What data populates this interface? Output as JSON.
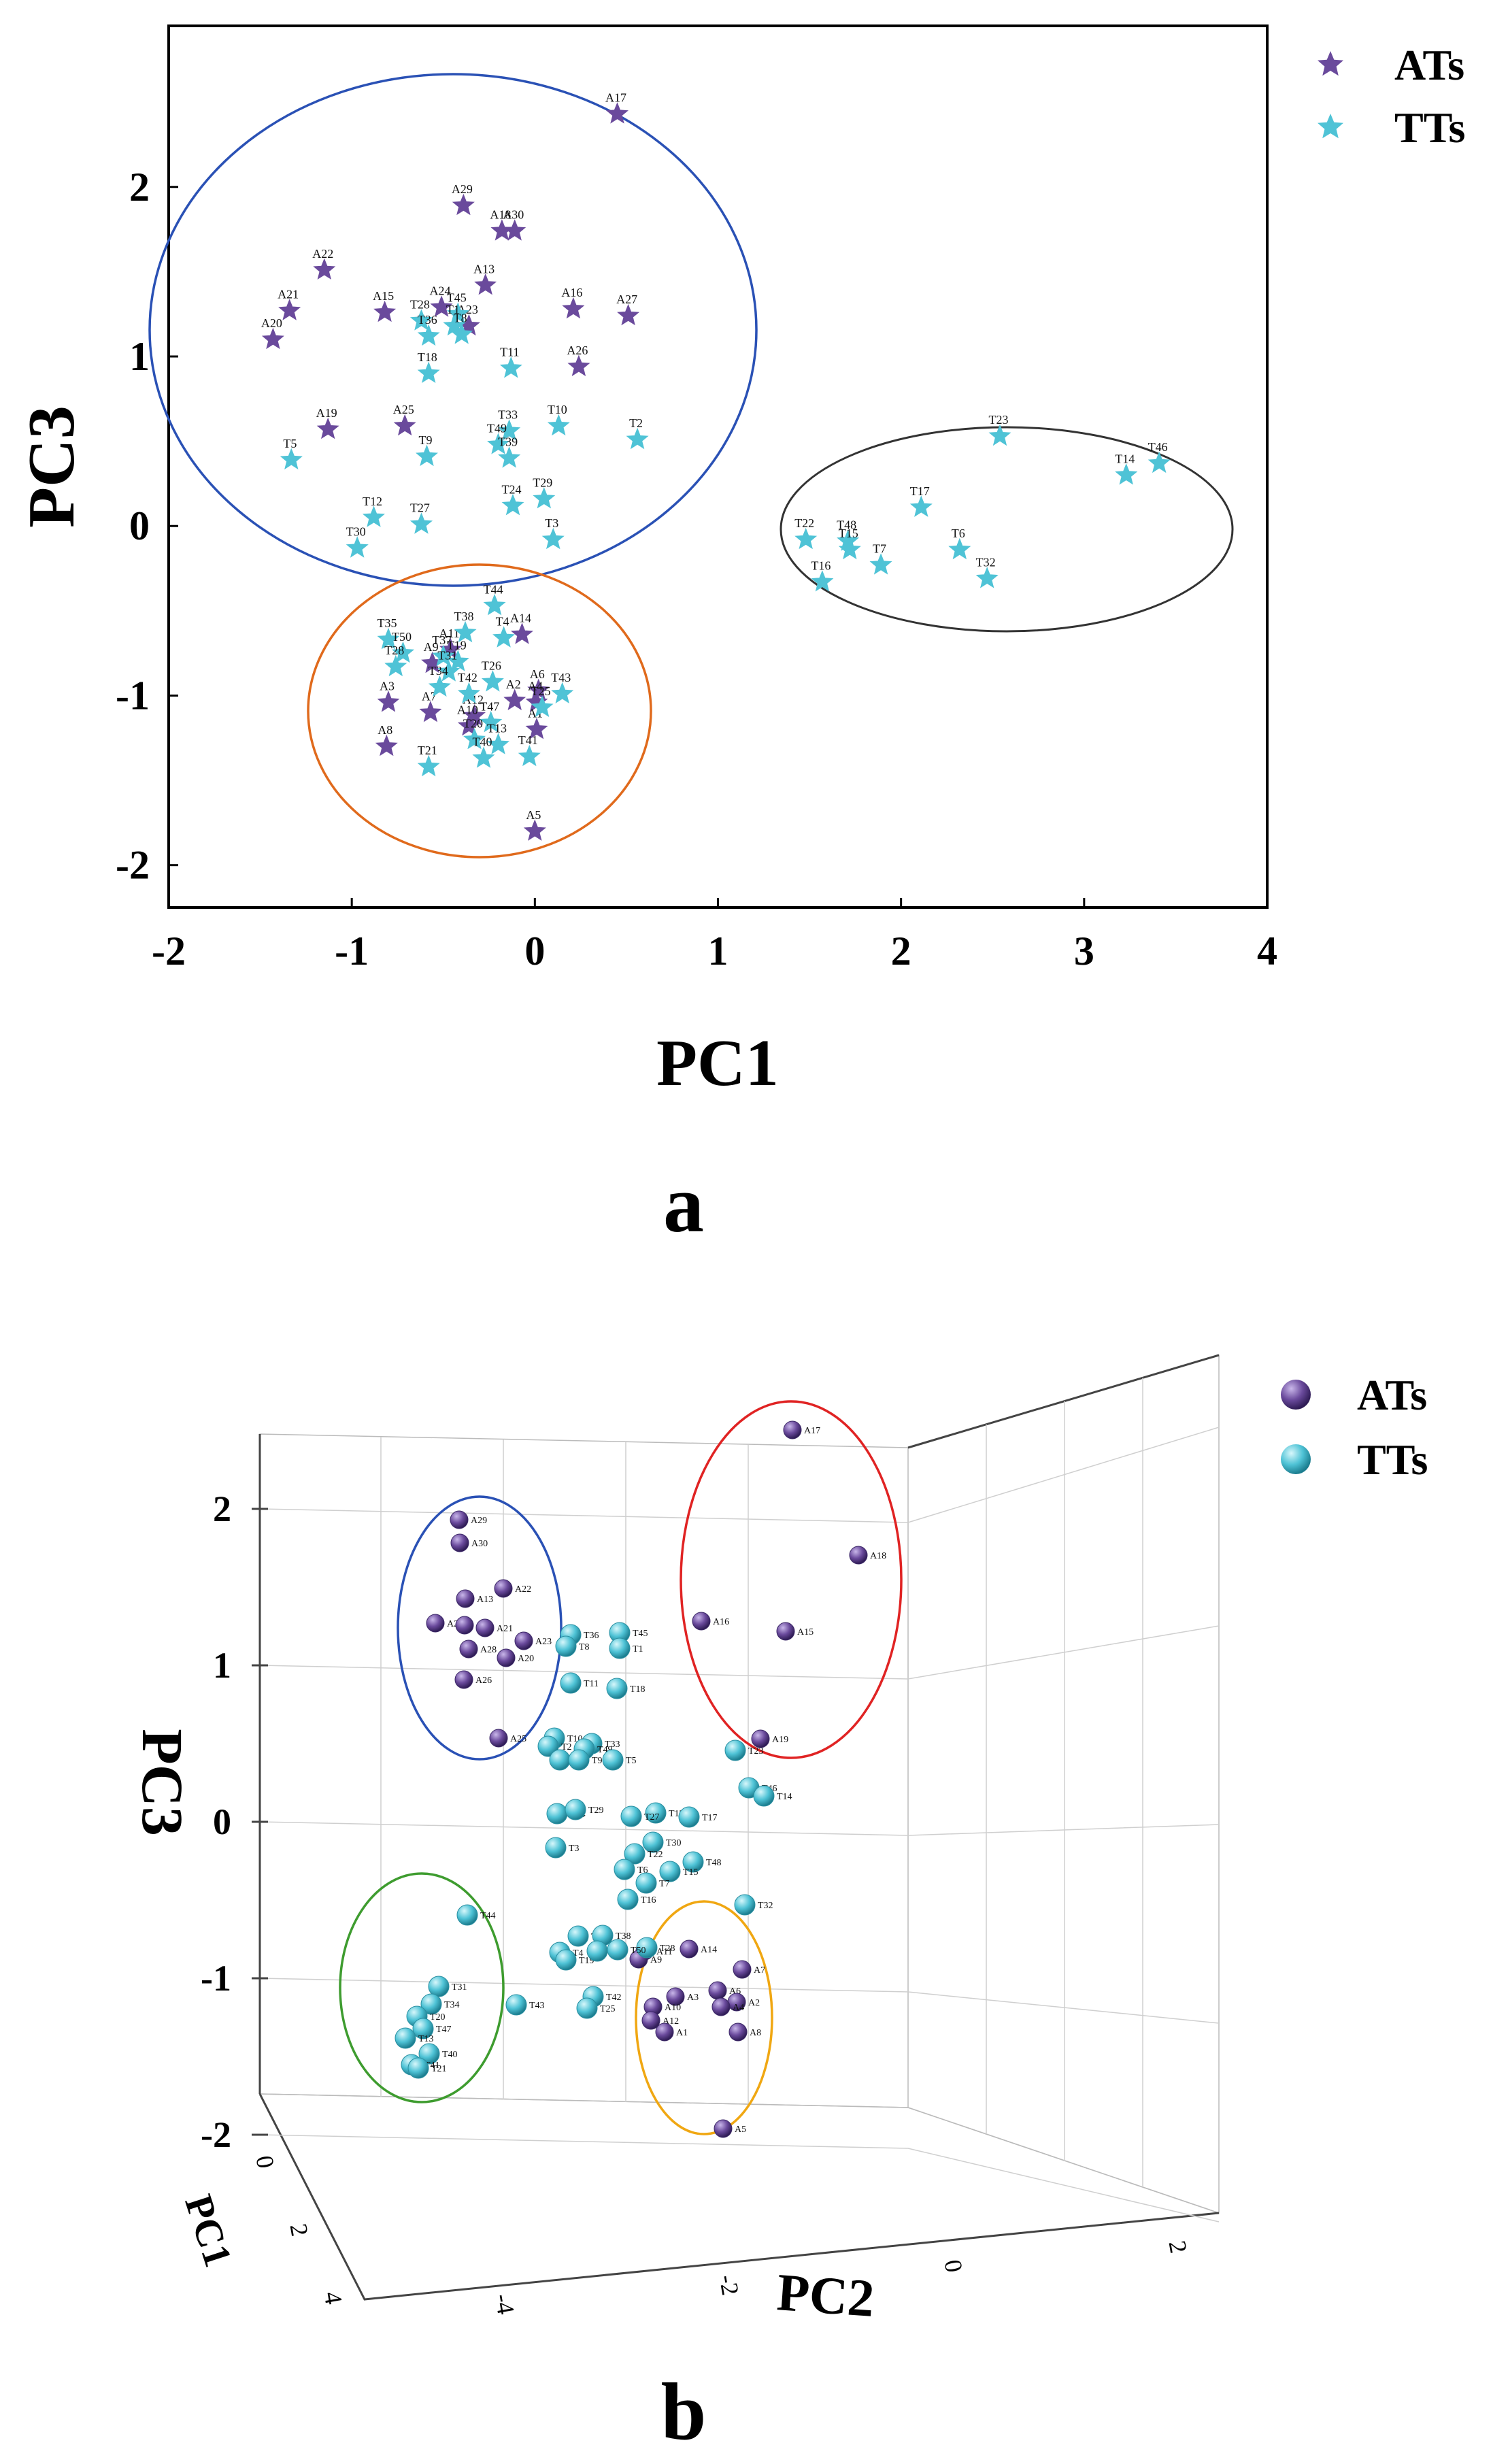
{
  "chart_data": [
    {
      "panel_label": "a",
      "type": "scatter",
      "xlabel": "PC1",
      "ylabel": "PC3",
      "xlim": [
        -2,
        4
      ],
      "ylim": [
        -2.25,
        2.95
      ],
      "xticks": [
        -2,
        -1,
        0,
        1,
        2,
        3,
        4
      ],
      "yticks": [
        -2,
        -1,
        0,
        1,
        2
      ],
      "grid": false,
      "legend_position": "top-right-outside",
      "colors": {
        "ATs": "#6a4a9c",
        "TTs": "#4fc3d6"
      },
      "series": [
        {
          "name": "ATs",
          "marker": "star",
          "points": [
            {
              "label": "A17",
              "x": 0.45,
              "y": 2.43
            },
            {
              "label": "A29",
              "x": -0.39,
              "y": 1.89
            },
            {
              "label": "A18",
              "x": -0.18,
              "y": 1.74
            },
            {
              "label": "A30",
              "x": -0.11,
              "y": 1.74
            },
            {
              "label": "A22",
              "x": -1.15,
              "y": 1.51
            },
            {
              "label": "A13",
              "x": -0.27,
              "y": 1.42
            },
            {
              "label": "A21",
              "x": -1.34,
              "y": 1.27
            },
            {
              "label": "A15",
              "x": -0.82,
              "y": 1.26
            },
            {
              "label": "A24",
              "x": -0.51,
              "y": 1.29
            },
            {
              "label": "A16",
              "x": 0.21,
              "y": 1.28
            },
            {
              "label": "A27",
              "x": 0.51,
              "y": 1.24
            },
            {
              "label": "A23",
              "x": -0.36,
              "y": 1.18
            },
            {
              "label": "A20",
              "x": -1.43,
              "y": 1.1
            },
            {
              "label": "A26",
              "x": 0.24,
              "y": 0.94
            },
            {
              "label": "A19",
              "x": -1.13,
              "y": 0.57
            },
            {
              "label": "A25",
              "x": -0.71,
              "y": 0.59
            },
            {
              "label": "A14",
              "x": -0.07,
              "y": -0.64
            },
            {
              "label": "A11",
              "x": -0.46,
              "y": -0.73
            },
            {
              "label": "A9",
              "x": -0.56,
              "y": -0.81
            },
            {
              "label": "A6",
              "x": 0.02,
              "y": -0.97
            },
            {
              "label": "A2",
              "x": -0.11,
              "y": -1.03
            },
            {
              "label": "A3",
              "x": -0.8,
              "y": -1.04
            },
            {
              "label": "A4",
              "x": 0.01,
              "y": -1.04
            },
            {
              "label": "A7",
              "x": -0.57,
              "y": -1.1
            },
            {
              "label": "A12",
              "x": -0.33,
              "y": -1.12
            },
            {
              "label": "A10",
              "x": -0.36,
              "y": -1.18
            },
            {
              "label": "A1",
              "x": 0.01,
              "y": -1.2
            },
            {
              "label": "A8",
              "x": -0.81,
              "y": -1.3
            },
            {
              "label": "A5",
              "x": 0.0,
              "y": -1.8
            }
          ]
        },
        {
          "name": "TTs",
          "marker": "star",
          "points": [
            {
              "label": "T45",
              "x": -0.42,
              "y": 1.25
            },
            {
              "label": "T28",
              "x": -0.62,
              "y": 1.21
            },
            {
              "label": "T1",
              "x": -0.44,
              "y": 1.18
            },
            {
              "label": "T36",
              "x": -0.58,
              "y": 1.12
            },
            {
              "label": "T8",
              "x": -0.4,
              "y": 1.13
            },
            {
              "label": "T11",
              "x": -0.13,
              "y": 0.93
            },
            {
              "label": "T18",
              "x": -0.58,
              "y": 0.9
            },
            {
              "label": "T33",
              "x": -0.14,
              "y": 0.56
            },
            {
              "label": "T10",
              "x": 0.13,
              "y": 0.59
            },
            {
              "label": "T2",
              "x": 0.56,
              "y": 0.51
            },
            {
              "label": "T49",
              "x": -0.2,
              "y": 0.48
            },
            {
              "label": "T5",
              "x": -1.33,
              "y": 0.39
            },
            {
              "label": "T9",
              "x": -0.59,
              "y": 0.41
            },
            {
              "label": "T39",
              "x": -0.14,
              "y": 0.4
            },
            {
              "label": "T29",
              "x": 0.05,
              "y": 0.16
            },
            {
              "label": "T24",
              "x": -0.12,
              "y": 0.12
            },
            {
              "label": "T12",
              "x": -0.88,
              "y": 0.05
            },
            {
              "label": "T27",
              "x": -0.62,
              "y": 0.01
            },
            {
              "label": "T3",
              "x": 0.1,
              "y": -0.08
            },
            {
              "label": "T30",
              "x": -0.97,
              "y": -0.13
            },
            {
              "label": "T23",
              "x": 2.54,
              "y": 0.53
            },
            {
              "label": "T46",
              "x": 3.41,
              "y": 0.37
            },
            {
              "label": "T14",
              "x": 3.23,
              "y": 0.3
            },
            {
              "label": "T17",
              "x": 2.11,
              "y": 0.11
            },
            {
              "label": "T22",
              "x": 1.48,
              "y": -0.08
            },
            {
              "label": "T48",
              "x": 1.71,
              "y": -0.09
            },
            {
              "label": "T6",
              "x": 2.32,
              "y": -0.14
            },
            {
              "label": "T7",
              "x": 1.89,
              "y": -0.23
            },
            {
              "label": "T15",
              "x": 1.72,
              "y": -0.14
            },
            {
              "label": "T16",
              "x": 1.57,
              "y": -0.33
            },
            {
              "label": "T32",
              "x": 2.47,
              "y": -0.31
            },
            {
              "label": "T44",
              "x": -0.22,
              "y": -0.47
            },
            {
              "label": "T38",
              "x": -0.38,
              "y": -0.63
            },
            {
              "label": "T35",
              "x": -0.8,
              "y": -0.67
            },
            {
              "label": "T4",
              "x": -0.17,
              "y": -0.66
            },
            {
              "label": "T50",
              "x": -0.72,
              "y": -0.75
            },
            {
              "label": "T37",
              "x": -0.5,
              "y": -0.77
            },
            {
              "label": "T19",
              "x": -0.42,
              "y": -0.8
            },
            {
              "label": "T28",
              "x": -0.76,
              "y": -0.83
            },
            {
              "label": "T31",
              "x": -0.47,
              "y": -0.86
            },
            {
              "label": "T34",
              "x": -0.52,
              "y": -0.95
            },
            {
              "label": "T26",
              "x": -0.23,
              "y": -0.92
            },
            {
              "label": "T42",
              "x": -0.36,
              "y": -0.99
            },
            {
              "label": "T43",
              "x": 0.15,
              "y": -0.99
            },
            {
              "label": "T25",
              "x": 0.04,
              "y": -1.07
            },
            {
              "label": "T47",
              "x": -0.24,
              "y": -1.16
            },
            {
              "label": "T20",
              "x": -0.33,
              "y": -1.26
            },
            {
              "label": "T13",
              "x": -0.2,
              "y": -1.29
            },
            {
              "label": "T21",
              "x": -0.58,
              "y": -1.42
            },
            {
              "label": "T40",
              "x": -0.28,
              "y": -1.37
            },
            {
              "label": "T41",
              "x": -0.03,
              "y": -1.36
            }
          ]
        }
      ]
    },
    {
      "panel_label": "b",
      "type": "scatter3d",
      "xlabel": "PC2",
      "ylabel": "PC1",
      "zlabel": "PC3",
      "zticks": [
        "2",
        "1",
        "0",
        "-1",
        "-2"
      ],
      "xticks": [
        "2",
        "0",
        "-2",
        "-4"
      ],
      "yticks": [
        "0",
        "2",
        "4"
      ],
      "colors": {
        "ATs": "#6a4a9c",
        "TTs": "#4fc3d6"
      },
      "legend": [
        "ATs",
        "TTs"
      ],
      "series": [
        {
          "name": "ATs",
          "marker": "sphere",
          "points": [
            {
              "label": "A17",
              "z": 2.62
            },
            {
              "label": "A18",
              "z": 1.8
            },
            {
              "label": "A15",
              "z": 1.29
            },
            {
              "label": "A16",
              "z": 1.35
            },
            {
              "label": "A19",
              "z": 0.6
            },
            {
              "label": "A29",
              "z": 1.99
            },
            {
              "label": "A30",
              "z": 1.83
            },
            {
              "label": "A22",
              "z": 1.55
            },
            {
              "label": "A13",
              "z": 1.49
            },
            {
              "label": "A27",
              "z": 1.32
            },
            {
              "label": "A24",
              "z": 1.36
            },
            {
              "label": "A21",
              "z": 1.31
            },
            {
              "label": "A28",
              "z": 1.2
            },
            {
              "label": "A23",
              "z": 1.24
            },
            {
              "label": "A20",
              "z": 1.11
            },
            {
              "label": "A26",
              "z": 0.98
            },
            {
              "label": "A25",
              "z": 0.61
            },
            {
              "label": "A14",
              "z": -0.66
            },
            {
              "label": "A11",
              "z": -0.71
            },
            {
              "label": "A9",
              "z": -0.78
            },
            {
              "label": "A6",
              "z": -0.98
            },
            {
              "label": "A7",
              "z": -0.87
            },
            {
              "label": "A3",
              "z": -1.04
            },
            {
              "label": "A2",
              "z": -1.09
            },
            {
              "label": "A4",
              "z": -1.13
            },
            {
              "label": "A10",
              "z": -1.13
            },
            {
              "label": "A12",
              "z": -1.2
            },
            {
              "label": "A1",
              "z": -1.27
            },
            {
              "label": "A8",
              "z": -1.27
            },
            {
              "label": "A5",
              "z": -1.87
            }
          ]
        },
        {
          "name": "TTs",
          "marker": "sphere",
          "points": [
            {
              "label": "T36",
              "z": 1.24
            },
            {
              "label": "T45",
              "z": 1.27
            },
            {
              "label": "T1",
              "z": 1.18
            },
            {
              "label": "T8",
              "z": 1.16
            },
            {
              "label": "T11",
              "z": 0.98
            },
            {
              "label": "T18",
              "z": 0.93
            },
            {
              "label": "T10",
              "z": 0.6
            },
            {
              "label": "T33",
              "z": 0.57
            },
            {
              "label": "T2",
              "z": 0.52
            },
            {
              "label": "T49",
              "z": 0.48
            },
            {
              "label": "T39",
              "z": 0.41
            },
            {
              "label": "T9",
              "z": 0.41
            },
            {
              "label": "T5",
              "z": 0.41
            },
            {
              "label": "T23",
              "z": 0.52
            },
            {
              "label": "T46",
              "z": 0.33
            },
            {
              "label": "T14",
              "z": 0.24
            },
            {
              "label": "T24",
              "z": 0.13
            },
            {
              "label": "T29",
              "z": 0.15
            },
            {
              "label": "T12",
              "z": 0.07
            },
            {
              "label": "T27",
              "z": 0.08
            },
            {
              "label": "T17",
              "z": 0.04
            },
            {
              "label": "T3",
              "z": -0.11
            },
            {
              "label": "T30",
              "z": -0.13
            },
            {
              "label": "T22",
              "z": -0.16
            },
            {
              "label": "T48",
              "z": -0.21
            },
            {
              "label": "T6",
              "z": -0.26
            },
            {
              "label": "T15",
              "z": -0.29
            },
            {
              "label": "T7",
              "z": -0.33
            },
            {
              "label": "T16",
              "z": -0.44
            },
            {
              "label": "T32",
              "z": -0.47
            },
            {
              "label": "T44",
              "z": -0.54
            },
            {
              "label": "T35",
              "z": -0.67
            },
            {
              "label": "T38",
              "z": -0.68
            },
            {
              "label": "T28",
              "z": -0.81
            },
            {
              "label": "T4",
              "z": -0.82
            },
            {
              "label": "T19",
              "z": -0.88
            },
            {
              "label": "T37",
              "z": -0.82
            },
            {
              "label": "T50",
              "z": -0.82
            },
            {
              "label": "T31",
              "z": -0.97
            },
            {
              "label": "T34",
              "z": -1.07
            },
            {
              "label": "T42",
              "z": -1.04
            },
            {
              "label": "T25",
              "z": -1.1
            },
            {
              "label": "T43",
              "z": -1.11
            },
            {
              "label": "T20",
              "z": -1.17
            },
            {
              "label": "T47",
              "z": -1.27
            },
            {
              "label": "T13",
              "z": -1.31
            },
            {
              "label": "T40",
              "z": -1.42
            },
            {
              "label": "T41",
              "z": -1.5
            },
            {
              "label": "T21",
              "z": -1.51
            }
          ]
        }
      ]
    }
  ]
}
